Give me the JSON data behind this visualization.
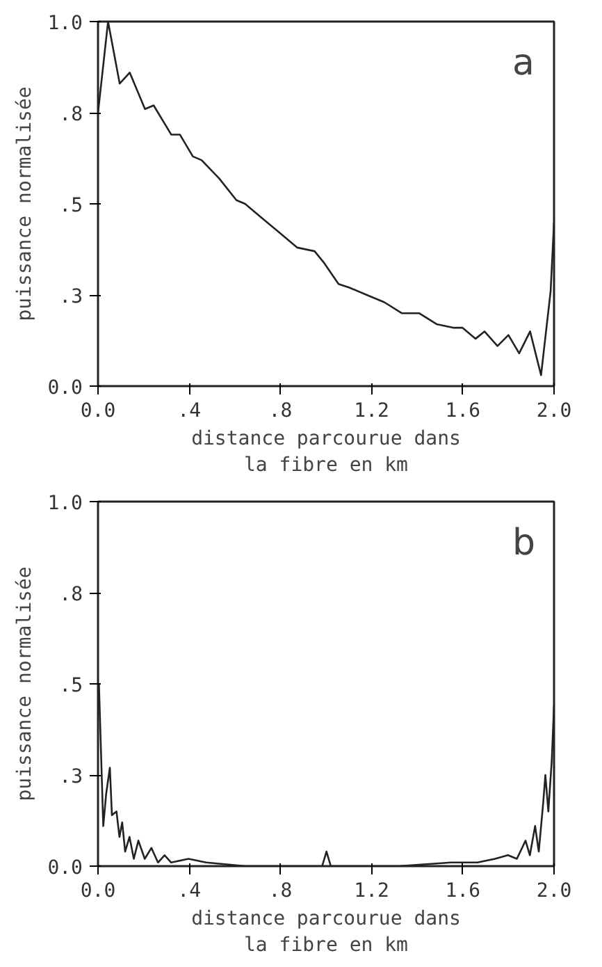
{
  "chart_data": [
    {
      "type": "line",
      "xlabel": "distance parcourue dans\nla fibre en km",
      "ylabel": "puissance normalisée",
      "annotations": [
        "a"
      ],
      "xlim": [
        0,
        2
      ],
      "ylim": [
        0,
        1
      ],
      "xticks": [
        {
          "value": 0,
          "label": "0.0"
        },
        {
          "value": 0.4,
          "label": ".4"
        },
        {
          "value": 0.8,
          "label": ".8"
        },
        {
          "value": 1.2,
          "label": "1.2"
        },
        {
          "value": 1.6,
          "label": "1.6"
        },
        {
          "value": 2,
          "label": "2.0"
        }
      ],
      "yticks": [
        {
          "value": 0,
          "label": "0.0"
        },
        {
          "value": 0.25,
          "label": ".3"
        },
        {
          "value": 0.5,
          "label": ".5"
        },
        {
          "value": 0.75,
          "label": ".8"
        },
        {
          "value": 1,
          "label": "1.0"
        }
      ],
      "grid": false,
      "series": [
        {
          "color": "#222222",
          "x": [
            0,
            0.044,
            0.095,
            0.139,
            0.206,
            0.244,
            0.321,
            0.359,
            0.416,
            0.454,
            0.531,
            0.607,
            0.645,
            0.721,
            0.798,
            0.874,
            0.95,
            0.989,
            1.055,
            1.103,
            1.179,
            1.256,
            1.332,
            1.408,
            1.485,
            1.561,
            1.599,
            1.656,
            1.695,
            1.752,
            1.8,
            1.847,
            1.895,
            1.943,
            1.985,
            2.0
          ],
          "values": [
            0.75,
            1.0,
            0.83,
            0.86,
            0.76,
            0.77,
            0.69,
            0.69,
            0.63,
            0.62,
            0.57,
            0.51,
            0.5,
            0.46,
            0.42,
            0.38,
            0.37,
            0.34,
            0.28,
            0.27,
            0.25,
            0.23,
            0.2,
            0.2,
            0.17,
            0.16,
            0.16,
            0.13,
            0.15,
            0.11,
            0.14,
            0.09,
            0.15,
            0.03,
            0.26,
            0.45
          ]
        }
      ]
    },
    {
      "type": "line",
      "xlabel": "distance parcourue dans\nla fibre en km",
      "ylabel": "puissance normalisée",
      "annotations": [
        "b"
      ],
      "xlim": [
        0,
        2
      ],
      "ylim": [
        0,
        1
      ],
      "xticks": [
        {
          "value": 0,
          "label": "0.0"
        },
        {
          "value": 0.4,
          "label": ".4"
        },
        {
          "value": 0.8,
          "label": ".8"
        },
        {
          "value": 1.2,
          "label": "1.2"
        },
        {
          "value": 1.6,
          "label": "1.6"
        },
        {
          "value": 2,
          "label": "2.0"
        }
      ],
      "yticks": [
        {
          "value": 0,
          "label": "0.0"
        },
        {
          "value": 0.25,
          "label": ".3"
        },
        {
          "value": 0.5,
          "label": ".5"
        },
        {
          "value": 0.75,
          "label": ".8"
        },
        {
          "value": 1,
          "label": "1.0"
        }
      ],
      "grid": false,
      "series": [
        {
          "color": "#222222",
          "x": [
            0.004,
            0.023,
            0.036,
            0.052,
            0.061,
            0.081,
            0.094,
            0.106,
            0.119,
            0.138,
            0.157,
            0.177,
            0.205,
            0.234,
            0.263,
            0.292,
            0.321,
            0.397,
            0.474,
            0.647,
            0.935,
            0.983,
            1.002,
            1.021,
            1.319,
            1.549,
            1.664,
            1.741,
            1.798,
            1.837,
            1.875,
            1.894,
            1.917,
            1.933,
            1.952,
            1.962,
            1.975,
            1.99,
            2.0
          ],
          "values": [
            0.5,
            0.11,
            0.2,
            0.27,
            0.14,
            0.15,
            0.08,
            0.12,
            0.04,
            0.08,
            0.02,
            0.07,
            0.02,
            0.05,
            0.01,
            0.03,
            0.01,
            0.02,
            0.01,
            0.0,
            0.0,
            0.0,
            0.04,
            0.0,
            0.0,
            0.01,
            0.01,
            0.02,
            0.03,
            0.02,
            0.07,
            0.03,
            0.11,
            0.04,
            0.17,
            0.25,
            0.15,
            0.29,
            0.44
          ]
        }
      ]
    }
  ]
}
